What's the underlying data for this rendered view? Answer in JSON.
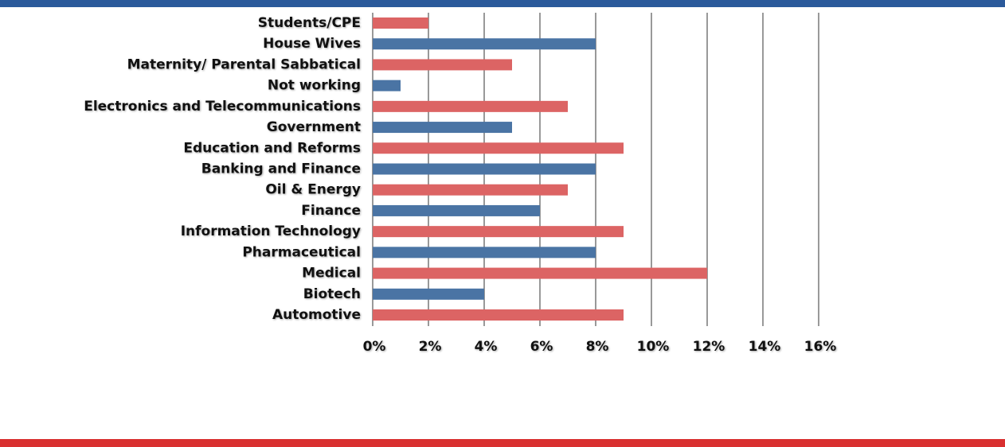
{
  "chart_data": {
    "type": "bar",
    "orientation": "horizontal",
    "categories": [
      "Students/CPE",
      "House Wives",
      "Maternity/ Parental Sabbatical",
      "Not working",
      "Electronics and Telecommunications",
      "Government",
      "Education and Reforms",
      "Banking and Finance",
      "Oil & Energy",
      "Finance",
      "Information Technology",
      "Pharmaceutical",
      "Medical",
      "Biotech",
      "Automotive"
    ],
    "values": [
      2,
      8,
      5,
      1,
      7,
      5,
      9,
      8,
      7,
      6,
      9,
      8,
      12,
      4,
      9
    ],
    "colors": [
      "#dc6464",
      "#4a74a4",
      "#dc6464",
      "#4a74a4",
      "#dc6464",
      "#4a74a4",
      "#dc6464",
      "#4a74a4",
      "#dc6464",
      "#4a74a4",
      "#dc6464",
      "#4a74a4",
      "#dc6464",
      "#4a74a4",
      "#dc6464"
    ],
    "xlim": [
      0,
      16
    ],
    "xticks": [
      {
        "value": 0,
        "label": "0%"
      },
      {
        "value": 2,
        "label": "2%"
      },
      {
        "value": 4,
        "label": "4%"
      },
      {
        "value": 6,
        "label": "6%"
      },
      {
        "value": 8,
        "label": "8%"
      },
      {
        "value": 10,
        "label": "10%"
      },
      {
        "value": 12,
        "label": "12%"
      },
      {
        "value": 14,
        "label": "14%"
      },
      {
        "value": 16,
        "label": "16%"
      }
    ],
    "grid": true
  }
}
